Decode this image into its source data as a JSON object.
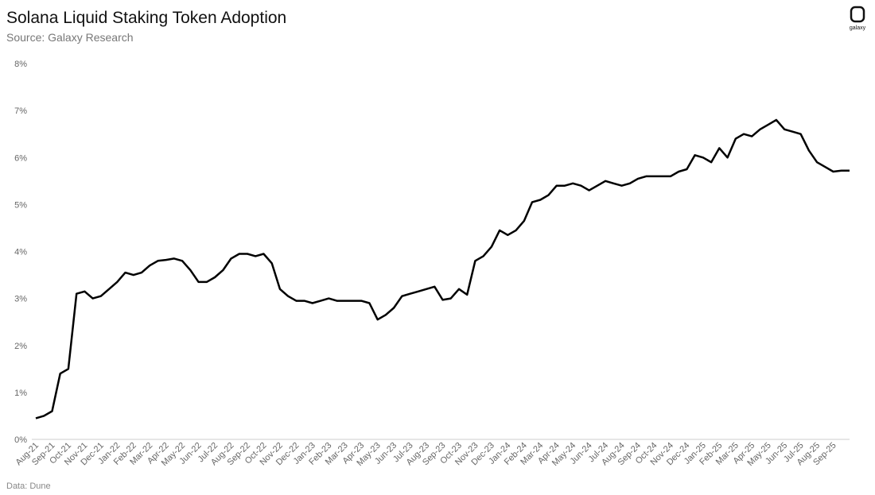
{
  "chart_data": {
    "type": "line",
    "title": "Solana Liquid Staking Token Adoption",
    "subtitle": "Source: Galaxy Research",
    "source": "Data: Dune",
    "logo": "galaxy",
    "categories": [
      "Aug-21",
      null,
      "Sep-21",
      null,
      "Oct-21",
      null,
      "Nov-21",
      null,
      "Dec-21",
      null,
      "Jan-22",
      null,
      "Feb-22",
      null,
      "Mar-22",
      null,
      "Apr-22",
      null,
      "May-22",
      null,
      "Jun-22",
      null,
      "Jul-22",
      null,
      "Aug-22",
      null,
      "Sep-22",
      null,
      "Oct-22",
      null,
      "Nov-22",
      null,
      "Dec-22",
      null,
      "Jan-23",
      null,
      "Feb-23",
      null,
      "Mar-23",
      null,
      "Apr-23",
      null,
      "May-23",
      null,
      "Jun-23",
      null,
      "Jul-23",
      null,
      "Aug-23",
      null,
      "Sep-23",
      null,
      "Oct-23",
      null,
      "Nov-23",
      null,
      "Dec-23",
      null,
      "Jan-24",
      null,
      "Feb-24",
      null,
      "Mar-24",
      null,
      "Apr-24",
      null,
      "May-24",
      null,
      "Jun-24",
      null,
      "Jul-24",
      null,
      "Aug-24",
      null,
      "Sep-24",
      null,
      "Oct-24",
      null,
      "Nov-24",
      null,
      "Dec-24",
      null,
      "Jan-25",
      null,
      "Feb-25",
      null,
      "Mar-25",
      null,
      "Apr-25",
      null,
      "May-25",
      null,
      "Jun-25",
      null,
      "Jul-25",
      null,
      "Aug-25",
      null,
      "Sep-25",
      null,
      null
    ],
    "values": [
      0.45,
      0.5,
      0.6,
      1.4,
      1.5,
      3.1,
      3.15,
      3.0,
      3.05,
      3.2,
      3.35,
      3.55,
      3.5,
      3.55,
      3.7,
      3.8,
      3.82,
      3.85,
      3.8,
      3.6,
      3.35,
      3.35,
      3.45,
      3.6,
      3.85,
      3.95,
      3.95,
      3.9,
      3.95,
      3.75,
      3.2,
      3.05,
      2.95,
      2.95,
      2.9,
      2.95,
      3.0,
      2.95,
      2.95,
      2.95,
      2.95,
      2.9,
      2.55,
      2.65,
      2.8,
      3.05,
      3.1,
      3.15,
      3.2,
      3.25,
      2.97,
      3.0,
      3.2,
      3.08,
      3.8,
      3.9,
      4.1,
      4.45,
      4.35,
      4.45,
      4.65,
      5.05,
      5.1,
      5.2,
      5.4,
      5.4,
      5.45,
      5.4,
      5.3,
      5.4,
      5.5,
      5.45,
      5.4,
      5.45,
      5.55,
      5.6,
      5.6,
      5.6,
      5.6,
      5.7,
      5.75,
      6.05,
      6.0,
      5.9,
      6.2,
      6.0,
      6.4,
      6.5,
      6.45,
      6.6,
      6.7,
      6.8,
      6.6,
      6.55,
      6.5,
      6.15,
      5.9,
      5.8,
      5.7,
      5.72,
      5.72
    ],
    "color": "#000000",
    "ylim": [
      0,
      8
    ],
    "yticks": [
      {
        "value": 0,
        "label": "0%"
      },
      {
        "value": 1,
        "label": "1%"
      },
      {
        "value": 2,
        "label": "2%"
      },
      {
        "value": 3,
        "label": "3%"
      },
      {
        "value": 4,
        "label": "4%"
      },
      {
        "value": 5,
        "label": "5%"
      },
      {
        "value": 6,
        "label": "6%"
      },
      {
        "value": 7,
        "label": "7%"
      },
      {
        "value": 8,
        "label": "8%"
      }
    ],
    "grid": false
  }
}
